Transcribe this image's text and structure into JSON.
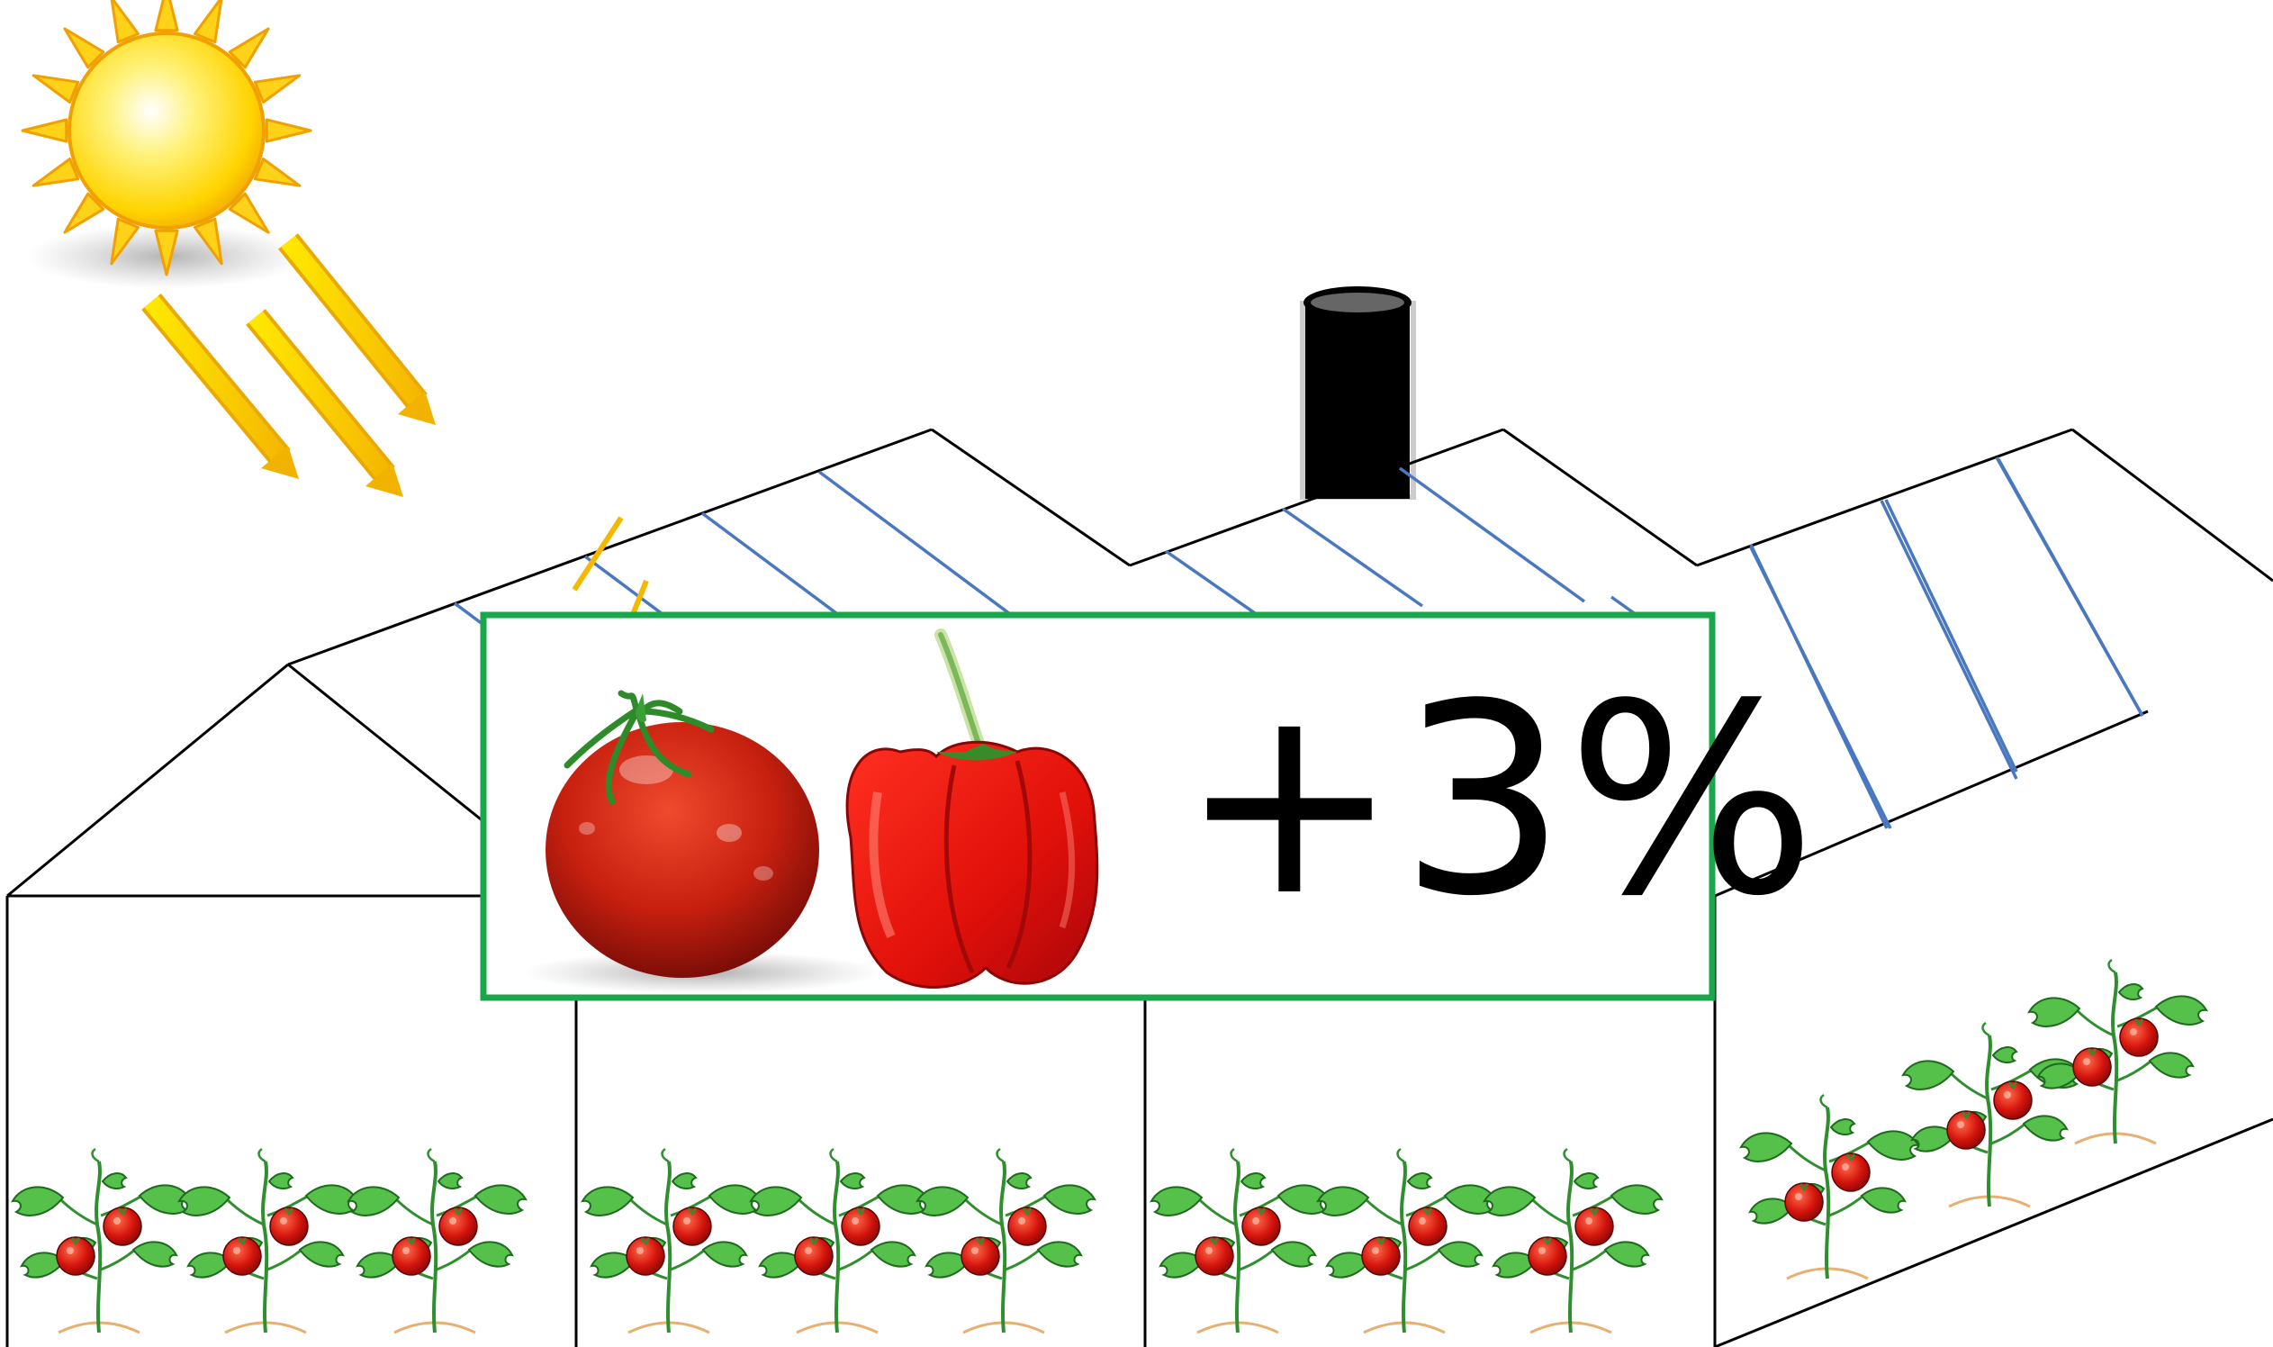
{
  "badge": {
    "text": "+3%",
    "value_percent": 3,
    "border_color": "#1aa64a"
  },
  "icons": {
    "sun": "sun-icon",
    "sunlight": "sunlight-rays-icon",
    "tomato": "tomato-icon",
    "pepper": "red-bell-pepper-icon",
    "plant": "tomato-plant-icon",
    "chimney": "chimney-icon"
  },
  "colors": {
    "glass_line": "#4a78c0",
    "sun": "#ffc400",
    "tomato": "#c81a12",
    "pepper": "#e8140f",
    "leaf": "#3cb03c"
  }
}
